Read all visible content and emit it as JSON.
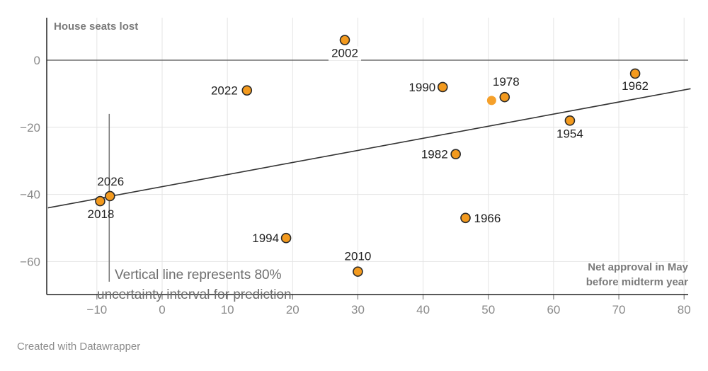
{
  "chart_data": {
    "type": "scatter",
    "ylabel": "House seats lost",
    "xlabel_lines": [
      "Net approval in May",
      "before midterm year"
    ],
    "xlim": [
      -17.5,
      81
    ],
    "ylim": [
      -70,
      12.5
    ],
    "x_ticks": [
      -10,
      0,
      10,
      20,
      30,
      40,
      50,
      60,
      70,
      80
    ],
    "y_ticks": [
      0,
      -20,
      -40,
      -60
    ],
    "x_tick_labels": [
      "−10",
      "0",
      "10",
      "20",
      "30",
      "40",
      "50",
      "60",
      "70",
      "80"
    ],
    "y_tick_labels": [
      "0",
      "−20",
      "−40",
      "−60"
    ],
    "points": [
      {
        "label": "2002",
        "x": 28,
        "y": 6
      },
      {
        "label": "2022",
        "x": 13,
        "y": -9
      },
      {
        "label": "1990",
        "x": 43,
        "y": -8
      },
      {
        "label": "1978",
        "x": 52.5,
        "y": -11
      },
      {
        "label": "1962",
        "x": 72.5,
        "y": -4
      },
      {
        "label": "1954",
        "x": 62.5,
        "y": -18
      },
      {
        "label": "1982",
        "x": 45,
        "y": -28
      },
      {
        "label": "2026",
        "x": -8,
        "y": -40.5
      },
      {
        "label": "2018",
        "x": -9.5,
        "y": -42
      },
      {
        "label": "1966",
        "x": 46.5,
        "y": -47
      },
      {
        "label": "1994",
        "x": 19,
        "y": -53
      },
      {
        "label": "2010",
        "x": 30,
        "y": -63
      }
    ],
    "highlight_point": {
      "x": 50.5,
      "y": -12
    },
    "regression_line": {
      "x0": -17.5,
      "y0": -44,
      "x1": 81,
      "y1": -8.5
    },
    "uncertainty_interval": {
      "x": -8,
      "y_low": -66,
      "y_high": -16
    },
    "annotation_lines": [
      "Vertical line represents 80%",
      "uncertainty interval for prediction"
    ],
    "colors": {
      "point_fill": "#f39a1e",
      "point_stroke": "#2a2a2a",
      "highlight": "#f5a02a",
      "line": "#333333",
      "grid": "#e4e4e4",
      "zero_line": "#555555"
    }
  },
  "footer": {
    "credit": "Created with Datawrapper"
  }
}
